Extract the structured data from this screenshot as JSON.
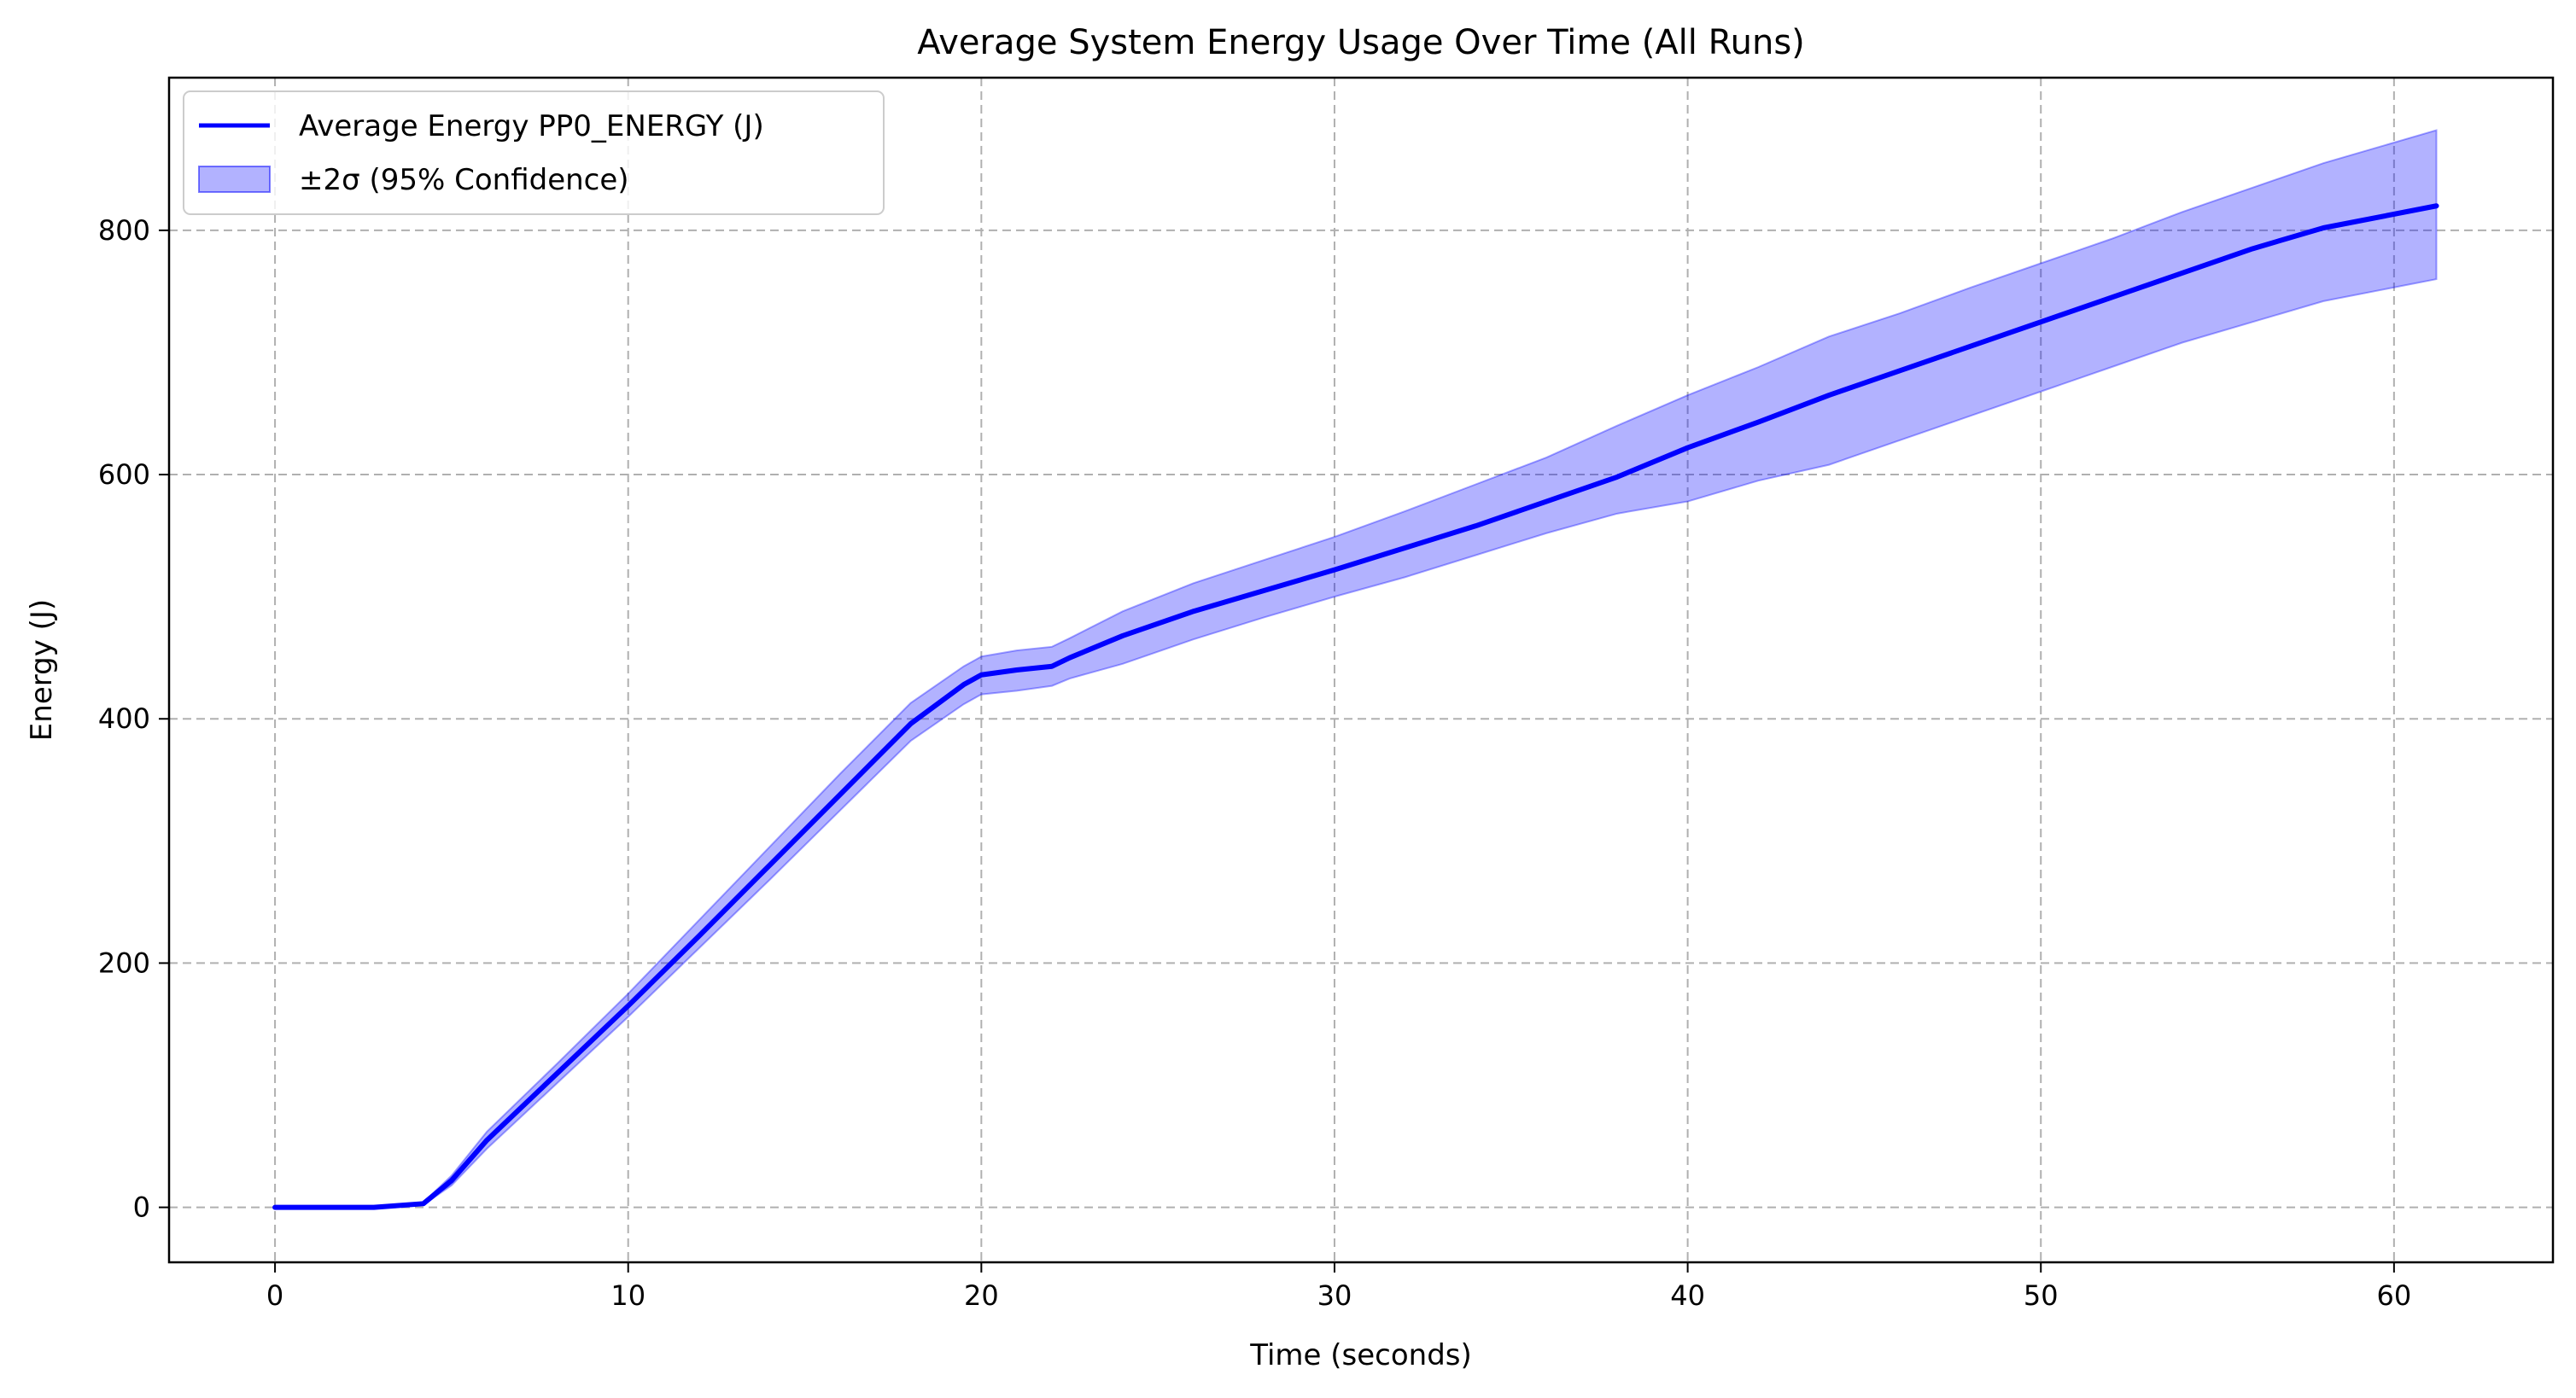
{
  "chart_data": {
    "type": "line",
    "title": "Average System Energy Usage Over Time (All Runs)",
    "xlabel": "Time (seconds)",
    "ylabel": "Energy (J)",
    "xlim": [
      -3,
      64.5
    ],
    "ylim": [
      -45,
      925
    ],
    "xticks": [
      0,
      10,
      20,
      30,
      40,
      50,
      60
    ],
    "yticks": [
      0,
      200,
      400,
      600,
      800
    ],
    "grid": true,
    "legend_position": "top-left",
    "series": [
      {
        "name": "Average Energy PP0_ENERGY (J)",
        "kind": "line",
        "color": "#0000ff",
        "x": [
          0,
          2,
          2.8,
          4.2,
          5,
          6,
          8,
          10,
          12,
          14,
          16,
          18,
          19.5,
          20,
          21,
          22,
          22.5,
          24,
          26,
          28,
          30,
          32,
          34,
          36,
          38,
          40,
          42,
          44,
          46,
          48,
          50,
          52,
          54,
          56,
          58,
          61.2
        ],
        "y": [
          0,
          0,
          0,
          3,
          22,
          55,
          110,
          165,
          222,
          280,
          338,
          396,
          428,
          436,
          440,
          443,
          450,
          468,
          488,
          505,
          522,
          540,
          558,
          578,
          598,
          622,
          643,
          665,
          685,
          705,
          725,
          745,
          765,
          785,
          802,
          820
        ]
      },
      {
        "name": "±2σ (95% Confidence)",
        "kind": "band",
        "color": "#0000ff",
        "fill_opacity": 0.3,
        "x": [
          0,
          2,
          2.8,
          4.2,
          5,
          6,
          8,
          10,
          12,
          14,
          16,
          18,
          19.5,
          20,
          21,
          22,
          22.5,
          24,
          26,
          28,
          30,
          32,
          34,
          36,
          38,
          40,
          42,
          44,
          46,
          48,
          50,
          52,
          54,
          56,
          58,
          61.2
        ],
        "lower": [
          0,
          0,
          0,
          2,
          18,
          48,
          102,
          156,
          212,
          268,
          325,
          382,
          412,
          420,
          423,
          427,
          433,
          445,
          465,
          483,
          500,
          516,
          534,
          552,
          568,
          578,
          595,
          608,
          628,
          648,
          668,
          688,
          708,
          725,
          742,
          760
        ],
        "upper": [
          0,
          0,
          0,
          4,
          26,
          62,
          118,
          175,
          235,
          295,
          355,
          413,
          443,
          451,
          456,
          459,
          466,
          488,
          511,
          530,
          549,
          570,
          592,
          614,
          640,
          665,
          688,
          713,
          732,
          753,
          773,
          793,
          815,
          835,
          855,
          882
        ]
      }
    ]
  }
}
